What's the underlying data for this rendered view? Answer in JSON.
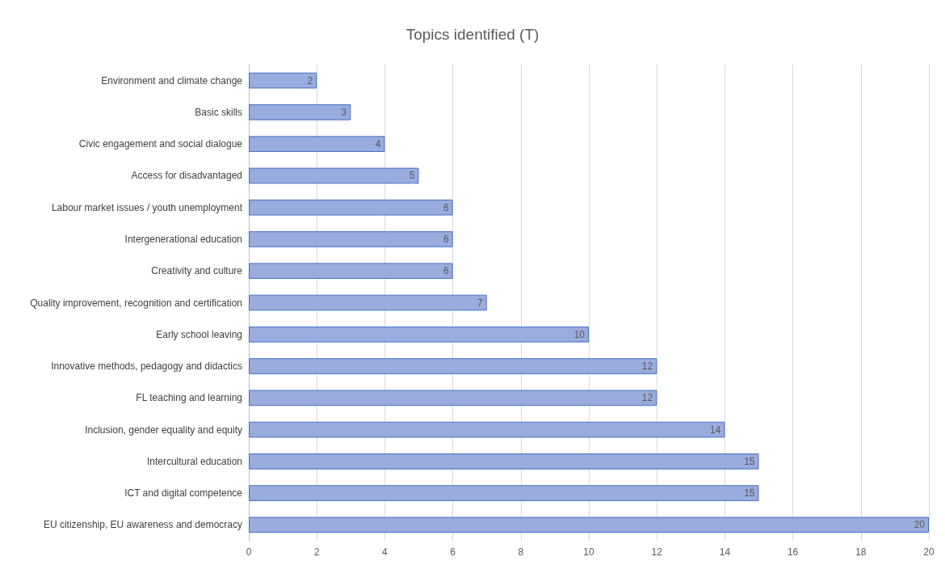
{
  "chart_data": {
    "type": "bar",
    "orientation": "horizontal",
    "title": "Topics identified (T)",
    "categories": [
      "Environment and climate change",
      "Basic skills",
      "Civic engagement and social dialogue",
      "Access for disadvantaged",
      "Labour market issues / youth unemployment",
      "Intergenerational education",
      "Creativity and culture",
      "Quality improvement, recognition and certification",
      "Early school leaving",
      "Innovative methods, pedagogy and didactics",
      "FL teaching and learning",
      "Inclusion, gender equality and equity",
      "Intercultural education",
      "ICT and digital competence",
      "EU citizenship, EU awareness and democracy"
    ],
    "values": [
      2,
      3,
      4,
      5,
      6,
      6,
      6,
      7,
      10,
      12,
      12,
      14,
      15,
      15,
      20
    ],
    "color": "#9aabdd",
    "xlim": [
      0,
      20
    ],
    "xticks": [
      0,
      2,
      4,
      6,
      8,
      10,
      12,
      14,
      16,
      18,
      20
    ],
    "grid": "x",
    "data_labels": true
  }
}
